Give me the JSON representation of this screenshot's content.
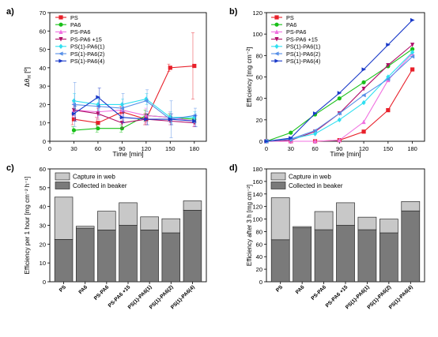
{
  "chart_data": [
    {
      "panel": "a)",
      "type": "line",
      "xlabel": "Time [min]",
      "ylabel": "ΔθH [º]",
      "ylabel_main": "Δθ",
      "ylabel_sub": "H",
      "ylabel_unit": " [º]",
      "xlim": [
        0,
        195
      ],
      "ylim": [
        0,
        70
      ],
      "xticks": [
        "0",
        "30",
        "60",
        "90",
        "120",
        "150",
        "180"
      ],
      "yticks": [
        "0",
        "10",
        "20",
        "30",
        "40",
        "50",
        "60",
        "70"
      ],
      "legend": "top-left",
      "series": [
        {
          "name": "PS",
          "color": "#e8202a",
          "marker": "square",
          "x": [
            30,
            60,
            90,
            120,
            150,
            180
          ],
          "y": [
            12,
            10,
            16,
            12,
            40,
            41
          ],
          "err": [
            3,
            3,
            3,
            3,
            2,
            18
          ]
        },
        {
          "name": "PA6",
          "color": "#18c018",
          "marker": "circle",
          "x": [
            30,
            60,
            90,
            120,
            150,
            180
          ],
          "y": [
            6,
            7,
            7,
            14,
            13,
            12
          ],
          "err": [
            2,
            2,
            2,
            3,
            2,
            2
          ]
        },
        {
          "name": "PS-PA6",
          "color": "#f070e0",
          "marker": "triangle-up",
          "x": [
            30,
            60,
            90,
            120,
            150,
            180
          ],
          "y": [
            17,
            16,
            17,
            14,
            13,
            11
          ],
          "err": [
            4,
            3,
            3,
            4,
            3,
            3
          ]
        },
        {
          "name": "PS-PA6 +15",
          "color": "#b0106a",
          "marker": "triangle-down",
          "x": [
            30,
            60,
            90,
            120,
            150,
            180
          ],
          "y": [
            17,
            15,
            10,
            12,
            11,
            10
          ],
          "err": [
            3,
            3,
            3,
            3,
            2,
            2
          ]
        },
        {
          "name": "PS(1)-PA6(1)",
          "color": "#30dff0",
          "marker": "diamond",
          "x": [
            30,
            60,
            90,
            120,
            150,
            180
          ],
          "y": [
            22,
            20,
            20,
            23,
            13,
            13
          ],
          "err": [
            4,
            3,
            3,
            3,
            3,
            3
          ]
        },
        {
          "name": "PS(1)-PA6(2)",
          "color": "#5890e8",
          "marker": "triangle-left",
          "x": [
            30,
            60,
            90,
            120,
            150,
            180
          ],
          "y": [
            20,
            19,
            18,
            22,
            12,
            14
          ],
          "err": [
            12,
            5,
            8,
            6,
            10,
            4
          ]
        },
        {
          "name": "PS(1)-PA6(4)",
          "color": "#1838c8",
          "marker": "triangle-right",
          "x": [
            30,
            60,
            90,
            120,
            150,
            180
          ],
          "y": [
            15,
            24,
            13,
            12,
            12,
            11
          ],
          "err": [
            4,
            5,
            3,
            3,
            3,
            3
          ]
        }
      ]
    },
    {
      "panel": "b)",
      "type": "line",
      "xlabel": "Time [min]",
      "ylabel": "Efficiency [mg cm⁻²]",
      "xlim": [
        0,
        195
      ],
      "ylim": [
        0,
        120
      ],
      "xticks": [
        "0",
        "30",
        "60",
        "90",
        "120",
        "150",
        "180"
      ],
      "yticks": [
        "0",
        "20",
        "40",
        "60",
        "80",
        "100",
        "120"
      ],
      "legend": "top-left",
      "series": [
        {
          "name": "PS",
          "color": "#e8202a",
          "marker": "square",
          "x": [
            0,
            30,
            60,
            90,
            120,
            150,
            180
          ],
          "y": [
            0,
            0,
            0,
            1,
            9,
            29,
            67
          ]
        },
        {
          "name": "PA6",
          "color": "#18c018",
          "marker": "circle",
          "x": [
            0,
            30,
            60,
            90,
            120,
            150,
            180
          ],
          "y": [
            0,
            8,
            25,
            40,
            55,
            70,
            86
          ]
        },
        {
          "name": "PS-PA6",
          "color": "#f070e0",
          "marker": "triangle-up",
          "x": [
            0,
            30,
            60,
            90,
            120,
            150,
            180
          ],
          "y": [
            0,
            0,
            0,
            1,
            18,
            57,
            82
          ]
        },
        {
          "name": "PS-PA6 +15",
          "color": "#b0106a",
          "marker": "triangle-down",
          "x": [
            0,
            30,
            60,
            90,
            120,
            150,
            180
          ],
          "y": [
            0,
            1,
            9,
            26,
            49,
            71,
            90
          ]
        },
        {
          "name": "PS(1)-PA6(1)",
          "color": "#30dff0",
          "marker": "diamond",
          "x": [
            0,
            30,
            60,
            90,
            120,
            150,
            180
          ],
          "y": [
            0,
            2,
            7,
            20,
            36,
            60,
            83
          ]
        },
        {
          "name": "PS(1)-PA6(2)",
          "color": "#5890e8",
          "marker": "triangle-left",
          "x": [
            0,
            30,
            60,
            90,
            120,
            150,
            180
          ],
          "y": [
            0,
            2,
            10,
            26,
            43,
            58,
            79
          ]
        },
        {
          "name": "PS(1)-PA6(4)",
          "color": "#1838c8",
          "marker": "triangle-right",
          "x": [
            0,
            30,
            60,
            90,
            120,
            150,
            180
          ],
          "y": [
            0,
            3,
            26,
            45,
            67,
            90,
            113
          ]
        }
      ]
    },
    {
      "panel": "c)",
      "type": "bar",
      "stacked": true,
      "ylabel": "Efficiency per 1 hour [mg cm⁻² h⁻¹]",
      "ylim": [
        0,
        60
      ],
      "yticks": [
        "0",
        "10",
        "20",
        "30",
        "40",
        "50",
        "60"
      ],
      "legend": "top-left",
      "categories": [
        "PS",
        "PA6",
        "PS-PA6",
        "PS-PA6 +15",
        "PS(1)-PA6(1)",
        "PS(1)-PA6(2)",
        "PS(1)-PA6(4)"
      ],
      "series": [
        {
          "name": "Collected in beaker",
          "color": "#7a7a7a",
          "values": [
            22.5,
            28.5,
            27.5,
            30,
            27.5,
            26,
            38
          ]
        },
        {
          "name": "Capture in web",
          "color": "#c8c8c8",
          "values": [
            22.5,
            1,
            10,
            12,
            7,
            7.5,
            5
          ]
        }
      ]
    },
    {
      "panel": "d)",
      "type": "bar",
      "stacked": true,
      "ylabel": "Efficiency after 3 h [mg cm⁻²]",
      "ylim": [
        0,
        180
      ],
      "yticks": [
        "0",
        "20",
        "40",
        "60",
        "80",
        "100",
        "120",
        "140",
        "160",
        "180"
      ],
      "legend": "top-left",
      "categories": [
        "PS",
        "PA6",
        "PS-PA6",
        "PS-PA6 +15",
        "PS(1)-PA6(1)",
        "PS(1)-PA6(2)",
        "PS(1)-PA6(4)"
      ],
      "series": [
        {
          "name": "Collected in beaker",
          "color": "#7a7a7a",
          "values": [
            67,
            86,
            83,
            90,
            83,
            78,
            113
          ]
        },
        {
          "name": "Capture in web",
          "color": "#c8c8c8",
          "values": [
            67,
            2,
            29,
            36,
            20,
            22,
            15
          ]
        }
      ]
    }
  ]
}
